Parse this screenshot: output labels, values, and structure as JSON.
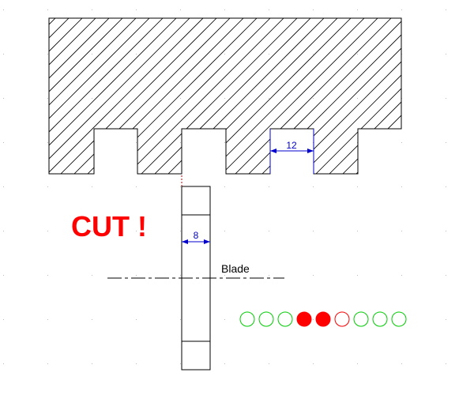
{
  "drawing": {
    "slot_width_label": "12",
    "blade_width_label": "8",
    "blade_label": "Blade",
    "cut_label": "CUT !"
  },
  "indicator": {
    "states": [
      "empty",
      "empty",
      "empty",
      "filled",
      "filled",
      "empty",
      "empty",
      "empty",
      "empty"
    ],
    "outline_colors": [
      "#00cc00",
      "#00cc00",
      "#00cc00",
      "#ff0000",
      "#ff0000",
      "#ff0000",
      "#00cc00",
      "#00cc00",
      "#00cc00"
    ],
    "filled_color": "#ff0000"
  },
  "colors": {
    "line": "#000000",
    "dimension": "#0000cc",
    "cut_text": "#ff0000"
  }
}
